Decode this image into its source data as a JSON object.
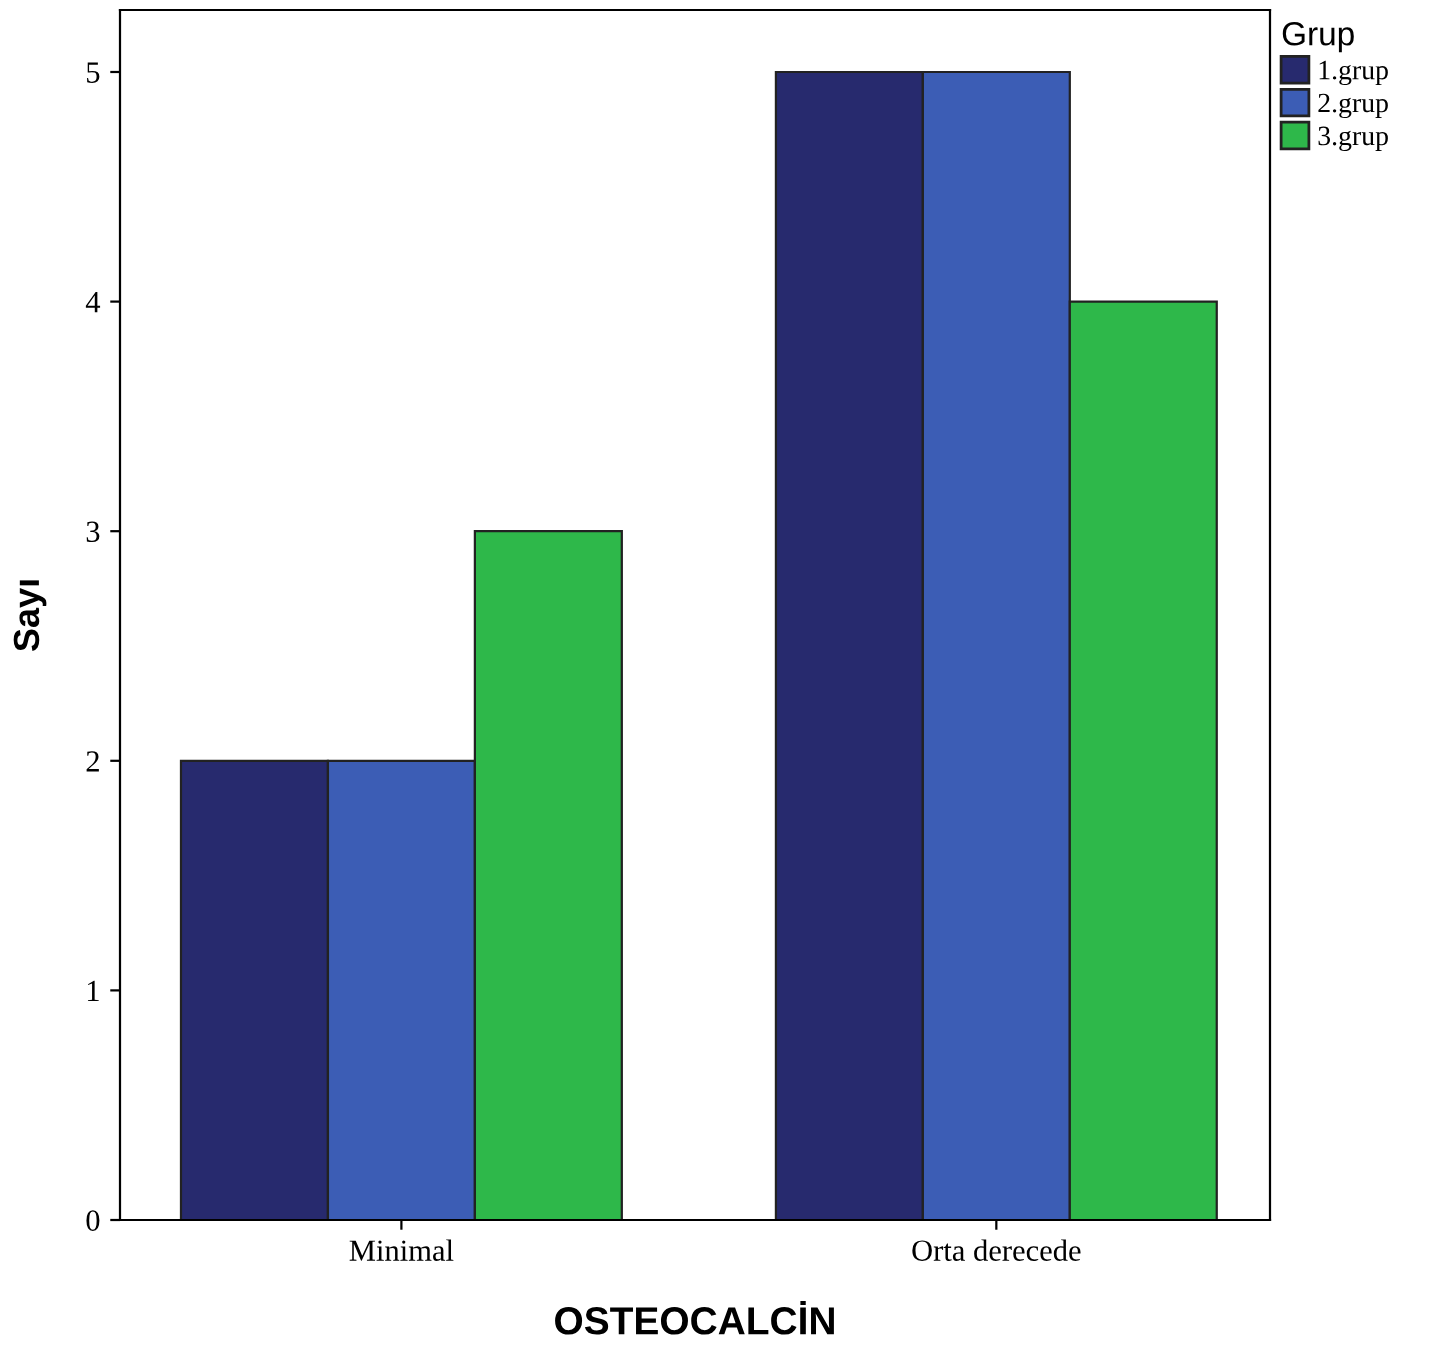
{
  "chart_data": {
    "type": "bar",
    "xlabel": "OSTEOCALCİN",
    "ylabel": "Sayı",
    "legend_title": "Grup",
    "categories": [
      "Minimal",
      "Orta derecede"
    ],
    "series": [
      {
        "name": "1.grup",
        "color": "#272a6e",
        "values": [
          2,
          5
        ]
      },
      {
        "name": "2.grup",
        "color": "#3c5db5",
        "values": [
          2,
          5
        ]
      },
      {
        "name": "3.grup",
        "color": "#2eb84a",
        "values": [
          3,
          4
        ]
      }
    ],
    "ylim": [
      0,
      5.27
    ],
    "yticks": [
      0,
      1,
      2,
      3,
      4,
      5
    ],
    "grid": false,
    "legend": "top right"
  }
}
